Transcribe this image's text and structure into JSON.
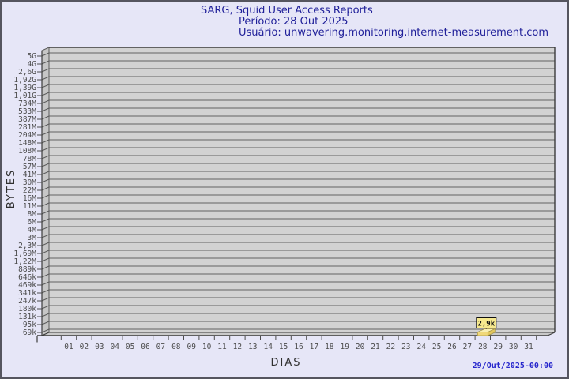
{
  "header": {
    "title": "SARG, Squid User Access Reports",
    "period": "Período: 28 Out 2025",
    "user": "Usuário: unwavering.monitoring.internet-measurement.com"
  },
  "footer": {
    "generated_at": "29/Out/2025-00:00"
  },
  "chart_data": {
    "type": "bar",
    "title": "SARG, Squid User Access Reports",
    "xlabel": "DIAS",
    "ylabel": "BYTES",
    "y_scale": "log",
    "grid": true,
    "style": "3d-bar",
    "y_tick_labels": [
      "5G",
      "4G",
      "2,6G",
      "1,92G",
      "1,39G",
      "1,01G",
      "734M",
      "533M",
      "387M",
      "281M",
      "204M",
      "148M",
      "108M",
      "78M",
      "57M",
      "41M",
      "30M",
      "22M",
      "16M",
      "11M",
      "8M",
      "6M",
      "4M",
      "3M",
      "2,3M",
      "1,69M",
      "1,22M",
      "889k",
      "646k",
      "469k",
      "341k",
      "247k",
      "180k",
      "131k",
      "95k",
      "69k"
    ],
    "categories": [
      "01",
      "02",
      "03",
      "04",
      "05",
      "06",
      "07",
      "08",
      "09",
      "10",
      "11",
      "12",
      "13",
      "14",
      "15",
      "16",
      "17",
      "18",
      "19",
      "20",
      "21",
      "22",
      "23",
      "24",
      "25",
      "26",
      "27",
      "28",
      "29",
      "30",
      "31"
    ],
    "values": [
      0,
      0,
      0,
      0,
      0,
      0,
      0,
      0,
      0,
      0,
      0,
      0,
      0,
      0,
      0,
      0,
      0,
      0,
      0,
      0,
      0,
      0,
      0,
      0,
      0,
      0,
      0,
      2900,
      0,
      0,
      0
    ],
    "annotation": {
      "day": "28",
      "value_label": "2,9k"
    },
    "colors": {
      "bar": "#f0d87a",
      "bar_top": "#f8efb4",
      "annotation_box": "#f6e98e",
      "plot_bg": "#d2d2d2",
      "grid_line": "#787878",
      "title_text": "#1f1f99",
      "timestamp_text": "#2626cc"
    }
  }
}
